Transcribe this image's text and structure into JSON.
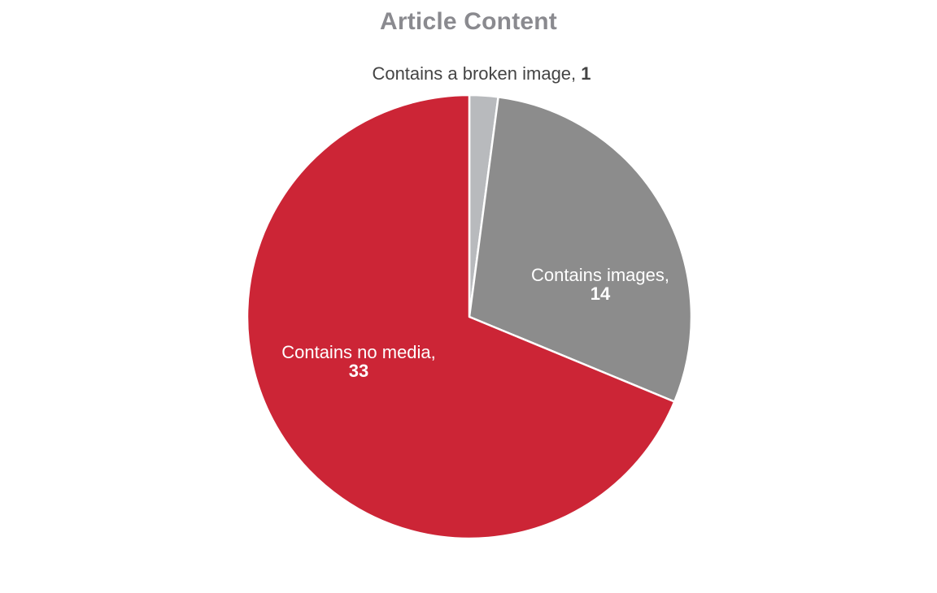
{
  "chart_data": {
    "type": "pie",
    "title": "Article Content",
    "slices": [
      {
        "label": "Contains a broken image",
        "value": 1,
        "color": "#b8babd",
        "label_color": "#444444",
        "label_placement": "outside"
      },
      {
        "label": "Contains images",
        "value": 14,
        "color": "#8c8c8c",
        "label_color": "#ffffff",
        "label_placement": "inside"
      },
      {
        "label": "Contains no media",
        "value": 33,
        "color": "#cc2536",
        "label_color": "#ffffff",
        "label_placement": "inside"
      }
    ],
    "start_angle": "top",
    "direction": "clockwise",
    "legend": "none"
  }
}
